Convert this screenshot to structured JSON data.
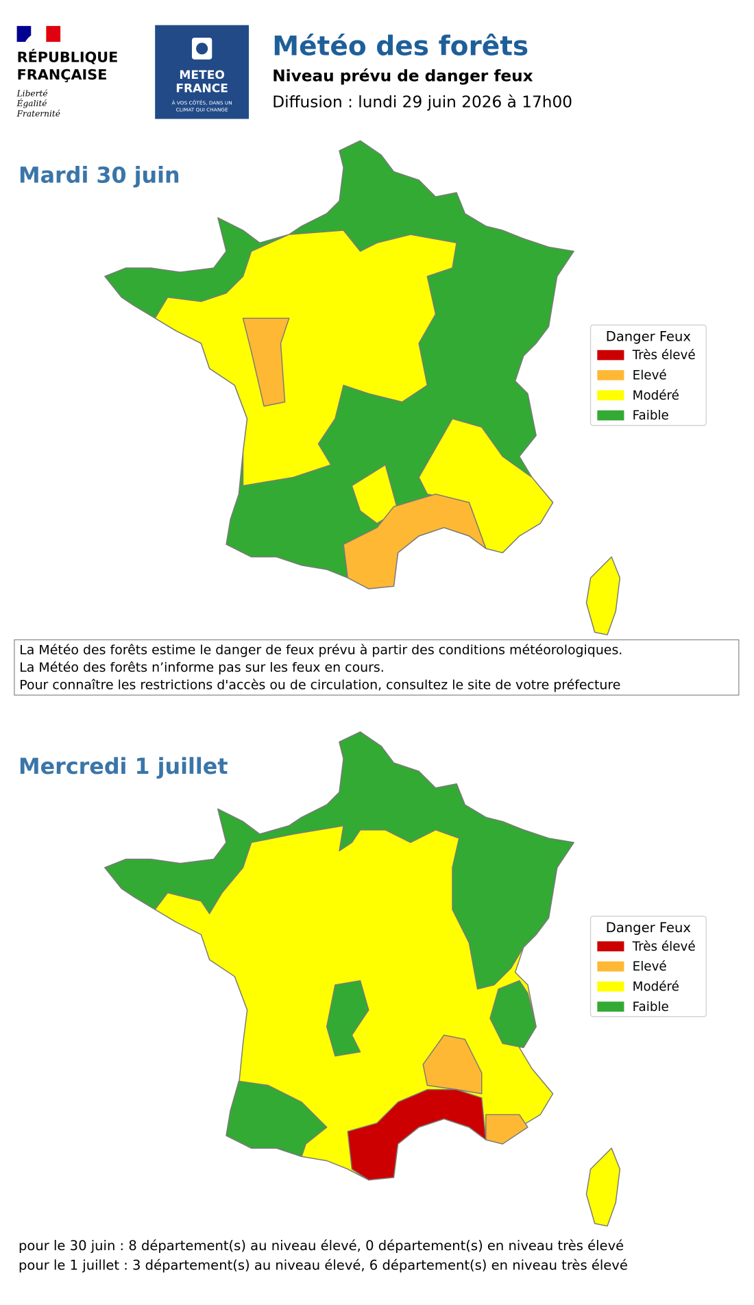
{
  "header": {
    "republic": {
      "line1": "RÉPUBLIQUE",
      "line2": "FRANÇAISE",
      "motto": [
        "Liberté",
        "Égalité",
        "Fraternité"
      ]
    },
    "meteo_logo": {
      "line1": "METEO",
      "line2": "FRANCE",
      "tagline": [
        "À VOS CÔTÉS, DANS UN",
        "CLIMAT QUI CHANGE"
      ]
    },
    "title": "Météo des forêts",
    "subtitle": "Niveau prévu de danger feux",
    "diffusion": "Diffusion : lundi 29 juin 2026 à 17h00"
  },
  "legend": {
    "title": "Danger Feux",
    "items": [
      {
        "label": "Très élevé",
        "color": "#cc0000"
      },
      {
        "label": "Elevé",
        "color": "#ffb833"
      },
      {
        "label": "Modéré",
        "color": "#ffff00"
      },
      {
        "label": "Faible",
        "color": "#33aa33"
      }
    ]
  },
  "days": [
    {
      "title": "Mardi 30 juin"
    },
    {
      "title": "Mercredi 1 juillet"
    }
  ],
  "notice": [
    "La Météo des forêts estime le danger de feux prévu à partir des conditions météorologiques.",
    "La Météo des forêts n’informe pas sur les feux en cours.",
    "Pour connaître les restrictions d'accès ou de circulation, consultez le site de votre préfecture"
  ],
  "footer": [
    "pour le 30 juin : 8 département(s) au niveau élevé, 0 département(s) en niveau très élevé",
    "pour le 1 juillet : 3 département(s) au niveau élevé, 6 département(s) en niveau très élevé"
  ]
}
